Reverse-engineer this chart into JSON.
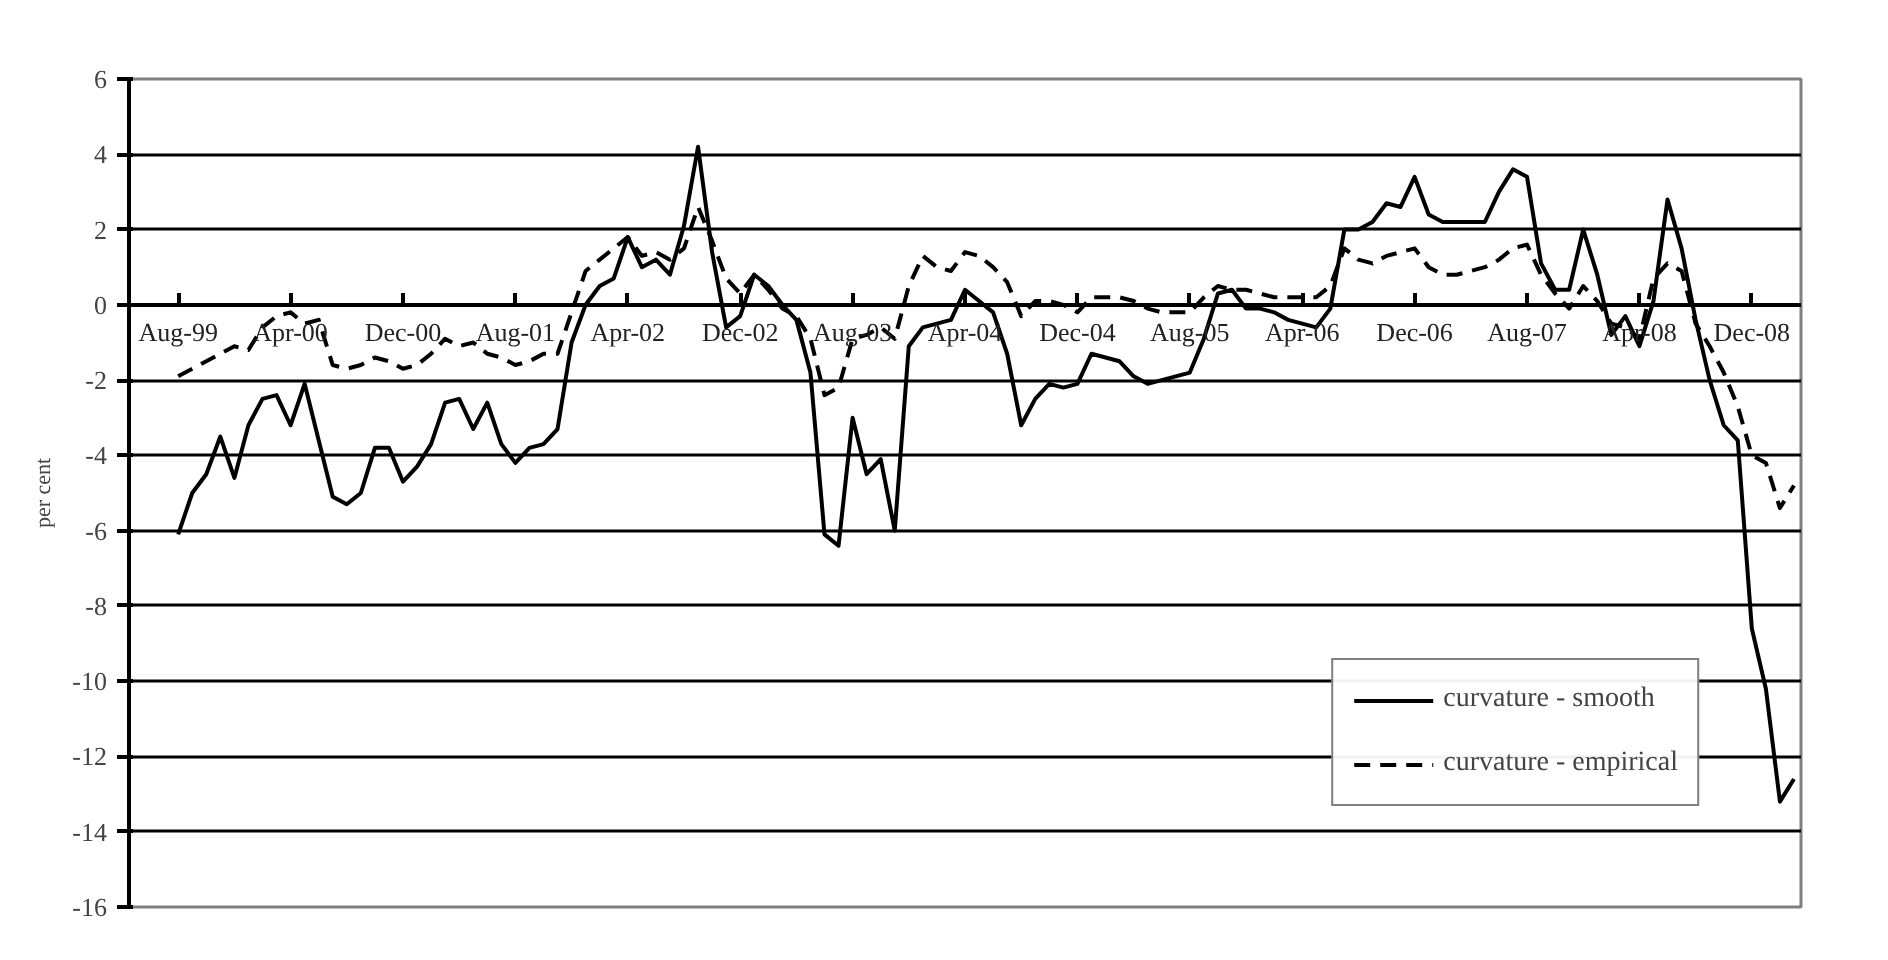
{
  "chart_data": {
    "type": "line",
    "ylabel": "per cent",
    "categories": [
      "Aug-99",
      null,
      null,
      null,
      null,
      null,
      null,
      null,
      "Apr-00",
      null,
      null,
      null,
      null,
      null,
      null,
      null,
      "Dec-00",
      null,
      null,
      null,
      null,
      null,
      null,
      null,
      "Aug-01",
      null,
      null,
      null,
      null,
      null,
      null,
      null,
      "Apr-02",
      null,
      null,
      null,
      null,
      null,
      null,
      null,
      "Dec-02",
      null,
      null,
      null,
      null,
      null,
      null,
      null,
      "Aug-03",
      null,
      null,
      null,
      null,
      null,
      null,
      null,
      "Apr-04",
      null,
      null,
      null,
      null,
      null,
      null,
      null,
      "Dec-04",
      null,
      null,
      null,
      null,
      null,
      null,
      null,
      "Aug-05",
      null,
      null,
      null,
      null,
      null,
      null,
      null,
      "Apr-06",
      null,
      null,
      null,
      null,
      null,
      null,
      null,
      "Dec-06",
      null,
      null,
      null,
      null,
      null,
      null,
      null,
      "Aug-07",
      null,
      null,
      null,
      null,
      null,
      null,
      null,
      "Apr-08",
      null,
      null,
      null,
      null,
      null,
      null,
      null,
      "Dec-08",
      null,
      null,
      null
    ],
    "series": [
      {
        "name": "curvature - smooth",
        "color": "#000000",
        "line_style": "solid",
        "values": [
          -6.1,
          -5.0,
          -4.5,
          -3.5,
          -4.6,
          -3.2,
          -2.5,
          -2.4,
          -3.2,
          -2.1,
          -3.6,
          -5.1,
          -5.3,
          -5.0,
          -3.8,
          -3.8,
          -4.7,
          -4.3,
          -3.7,
          -2.6,
          -2.5,
          -3.3,
          -2.6,
          -3.7,
          -4.2,
          -3.8,
          -3.7,
          -3.3,
          -1.0,
          0.0,
          0.5,
          0.7,
          1.8,
          1.0,
          1.2,
          0.8,
          2.1,
          4.2,
          1.4,
          -0.6,
          -0.3,
          0.8,
          0.5,
          0.0,
          -0.4,
          -1.8,
          -6.1,
          -6.4,
          -3.0,
          -4.5,
          -4.1,
          -6.0,
          -1.1,
          -0.6,
          -0.5,
          -0.4,
          0.4,
          0.1,
          -0.2,
          -1.3,
          -3.2,
          -2.5,
          -2.1,
          -2.2,
          -2.1,
          -1.3,
          -1.4,
          -1.5,
          -1.9,
          -2.1,
          -2.0,
          -1.9,
          -1.8,
          -0.9,
          0.3,
          0.4,
          -0.1,
          -0.1,
          -0.2,
          -0.4,
          -0.5,
          -0.6,
          -0.1,
          2.0,
          2.0,
          2.2,
          2.7,
          2.6,
          3.4,
          2.4,
          2.2,
          2.2,
          2.2,
          2.2,
          3.0,
          3.6,
          3.4,
          1.1,
          0.4,
          0.4,
          2.0,
          0.8,
          -0.8,
          -0.3,
          -1.1,
          0.1,
          2.8,
          1.5,
          -0.4,
          -2.0,
          -3.2,
          -3.6,
          -8.6,
          -10.2,
          -13.2,
          -12.6
        ]
      },
      {
        "name": "curvature - empirical",
        "color": "#000000",
        "line_style": "dashed",
        "values": [
          -1.9,
          -1.7,
          -1.5,
          -1.3,
          -1.1,
          -1.2,
          -0.6,
          -0.3,
          -0.2,
          -0.5,
          -0.4,
          -1.6,
          -1.7,
          -1.6,
          -1.4,
          -1.5,
          -1.7,
          -1.6,
          -1.3,
          -0.9,
          -1.1,
          -1.0,
          -1.3,
          -1.4,
          -1.6,
          -1.5,
          -1.3,
          -1.3,
          -0.2,
          0.9,
          1.2,
          1.5,
          1.8,
          1.3,
          1.4,
          1.2,
          1.5,
          2.6,
          1.7,
          0.7,
          0.3,
          0.8,
          0.4,
          -0.1,
          -0.3,
          -0.9,
          -2.4,
          -2.2,
          -0.9,
          -0.8,
          -0.6,
          -0.9,
          0.5,
          1.3,
          1.0,
          0.9,
          1.4,
          1.3,
          1.0,
          0.6,
          -0.3,
          0.1,
          0.1,
          0.0,
          -0.2,
          0.2,
          0.2,
          0.2,
          0.1,
          -0.1,
          -0.2,
          -0.2,
          -0.2,
          0.2,
          0.5,
          0.4,
          0.4,
          0.3,
          0.2,
          0.2,
          0.2,
          0.2,
          0.5,
          1.5,
          1.2,
          1.1,
          1.3,
          1.4,
          1.5,
          1.0,
          0.8,
          0.8,
          0.9,
          1.0,
          1.2,
          1.5,
          1.6,
          0.8,
          0.3,
          -0.1,
          0.5,
          0.1,
          -0.5,
          -0.6,
          -0.9,
          0.7,
          1.1,
          0.9,
          -0.5,
          -1.1,
          -1.8,
          -2.7,
          -4.0,
          -4.2,
          -5.4,
          -4.8
        ]
      }
    ],
    "ylim": [
      -16,
      6
    ],
    "yticks": [
      -16,
      -14,
      -12,
      -10,
      -8,
      -6,
      -4,
      -2,
      0,
      2,
      4,
      6
    ],
    "grid": "y",
    "legend": "bottom right"
  }
}
